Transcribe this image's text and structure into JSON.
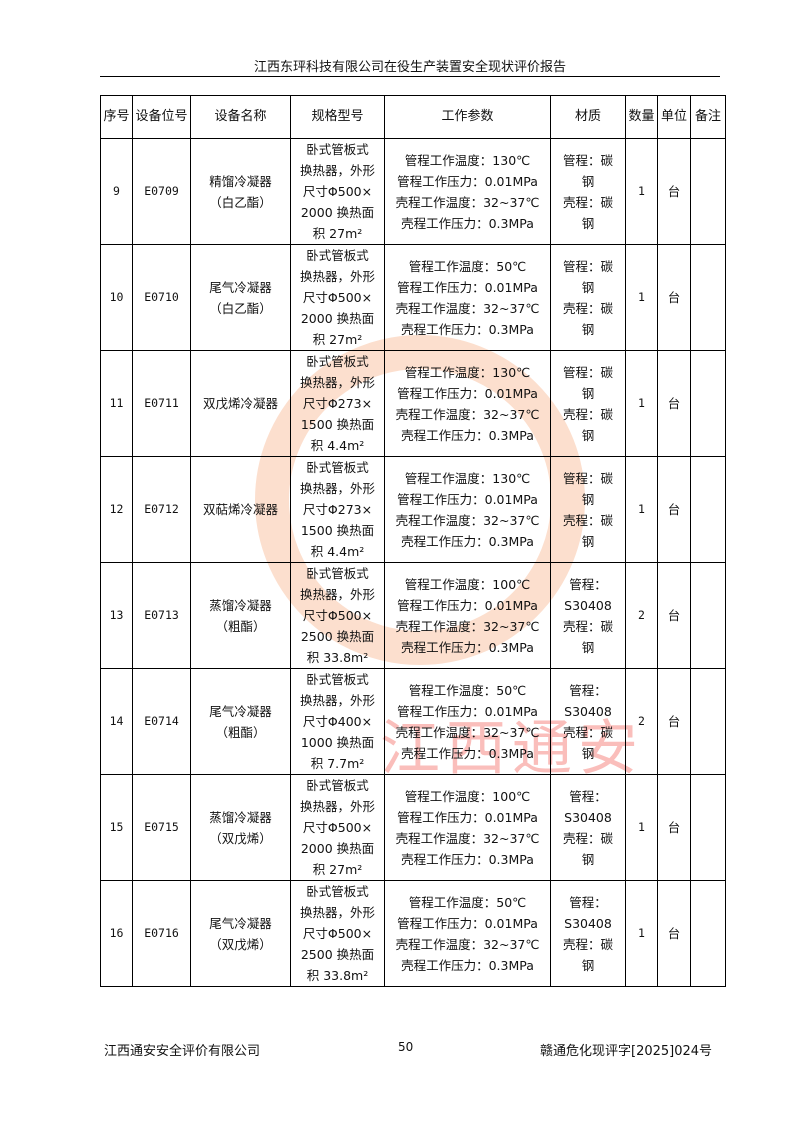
{
  "header": {
    "title": "江西东玶科技有限公司在役生产装置安全现状评价报告"
  },
  "table": {
    "columns": [
      "序号",
      "设备位号",
      "设备名称",
      "规格型号",
      "工作参数",
      "材质",
      "数量",
      "单位",
      "备注"
    ],
    "rows": [
      {
        "no": "9",
        "tag": "E0709",
        "name": [
          "精馏冷凝器",
          "（白乙酯）"
        ],
        "spec": [
          "卧式管板式",
          "换热器，外形",
          "尺寸Φ500×",
          "2000 换热面",
          "积 27m²"
        ],
        "params": [
          "管程工作温度：130℃",
          "管程工作压力：0.01MPa",
          "壳程工作温度：32~37℃",
          "壳程工作压力：0.3MPa"
        ],
        "material": [
          "管程：碳",
          "钢",
          "壳程：碳",
          "钢"
        ],
        "qty": "1",
        "unit": "台",
        "note": ""
      },
      {
        "no": "10",
        "tag": "E0710",
        "name": [
          "尾气冷凝器",
          "（白乙酯）"
        ],
        "spec": [
          "卧式管板式",
          "换热器，外形",
          "尺寸Φ500×",
          "2000 换热面",
          "积 27m²"
        ],
        "params": [
          "管程工作温度：50℃",
          "管程工作压力：0.01MPa",
          "壳程工作温度：32~37℃",
          "壳程工作压力：0.3MPa"
        ],
        "material": [
          "管程：碳",
          "钢",
          "壳程：碳",
          "钢"
        ],
        "qty": "1",
        "unit": "台",
        "note": ""
      },
      {
        "no": "11",
        "tag": "E0711",
        "name": [
          "双戊烯冷凝器"
        ],
        "spec": [
          "卧式管板式",
          "换热器，外形",
          "尺寸Φ273×",
          "1500 换热面",
          "积 4.4m²"
        ],
        "params": [
          "管程工作温度：130℃",
          "管程工作压力：0.01MPa",
          "壳程工作温度：32~37℃",
          "壳程工作压力：0.3MPa"
        ],
        "material": [
          "管程：碳",
          "钢",
          "壳程：碳",
          "钢"
        ],
        "qty": "1",
        "unit": "台",
        "note": ""
      },
      {
        "no": "12",
        "tag": "E0712",
        "name": [
          "双萜烯冷凝器"
        ],
        "spec": [
          "卧式管板式",
          "换热器，外形",
          "尺寸Φ273×",
          "1500 换热面",
          "积 4.4m²"
        ],
        "params": [
          "管程工作温度：130℃",
          "管程工作压力：0.01MPa",
          "壳程工作温度：32~37℃",
          "壳程工作压力：0.3MPa"
        ],
        "material": [
          "管程：碳",
          "钢",
          "壳程：碳",
          "钢"
        ],
        "qty": "1",
        "unit": "台",
        "note": ""
      },
      {
        "no": "13",
        "tag": "E0713",
        "name": [
          "蒸馏冷凝器",
          "（粗酯）"
        ],
        "spec": [
          "卧式管板式",
          "换热器，外形",
          "尺寸Φ500×",
          "2500 换热面",
          "积 33.8m²"
        ],
        "params": [
          "管程工作温度：100℃",
          "管程工作压力：0.01MPa",
          "壳程工作温度：32~37℃",
          "壳程工作压力：0.3MPa"
        ],
        "material": [
          "管程：",
          "S30408",
          "壳程：碳",
          "钢"
        ],
        "qty": "2",
        "unit": "台",
        "note": ""
      },
      {
        "no": "14",
        "tag": "E0714",
        "name": [
          "尾气冷凝器",
          "（粗酯）"
        ],
        "spec": [
          "卧式管板式",
          "换热器，外形",
          "尺寸Φ400×",
          "1000 换热面",
          "积 7.7m²"
        ],
        "params": [
          "管程工作温度：50℃",
          "管程工作压力：0.01MPa",
          "壳程工作温度：32~37℃",
          "壳程工作压力：0.3MPa"
        ],
        "material": [
          "管程：",
          "S30408",
          "壳程：碳",
          "钢"
        ],
        "qty": "2",
        "unit": "台",
        "note": ""
      },
      {
        "no": "15",
        "tag": "E0715",
        "name": [
          "蒸馏冷凝器",
          "（双戊烯）"
        ],
        "spec": [
          "卧式管板式",
          "换热器，外形",
          "尺寸Φ500×",
          "2000 换热面",
          "积 27m²"
        ],
        "params": [
          "管程工作温度：100℃",
          "管程工作压力：0.01MPa",
          "壳程工作温度：32~37℃",
          "壳程工作压力：0.3MPa"
        ],
        "material": [
          "管程：",
          "S30408",
          "壳程：碳",
          "钢"
        ],
        "qty": "1",
        "unit": "台",
        "note": ""
      },
      {
        "no": "16",
        "tag": "E0716",
        "name": [
          "尾气冷凝器",
          "（双戊烯）"
        ],
        "spec": [
          "卧式管板式",
          "换热器，外形",
          "尺寸Φ500×",
          "2500 换热面",
          "积 33.8m²"
        ],
        "params": [
          "管程工作温度：50℃",
          "管程工作压力：0.01MPa",
          "壳程工作温度：32~37℃",
          "壳程工作压力：0.3MPa"
        ],
        "material": [
          "管程：",
          "S30408",
          "壳程：碳",
          "钢"
        ],
        "qty": "1",
        "unit": "台",
        "note": ""
      }
    ]
  },
  "watermark": {
    "text": "江西通安",
    "color": "#f58c50"
  },
  "footer": {
    "company": "江西通安安全评价有限公司",
    "page": "50",
    "doc_no": "赣通危化现评字[2025]024号"
  }
}
